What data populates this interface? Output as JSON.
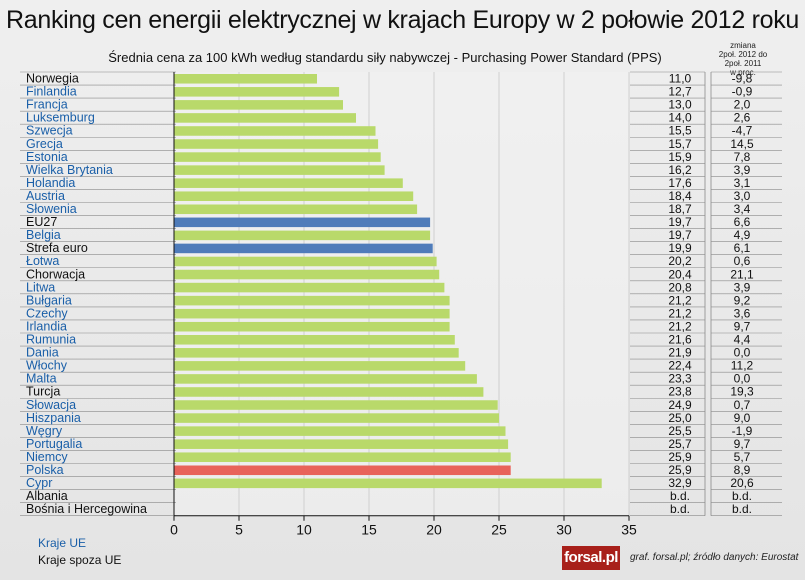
{
  "title": "Ranking cen energii elektrycznej w krajach Europy w 2 połowie 2012 roku",
  "subtitle": "Średnia cena za 100 kWh według standardu siły nabywczej - Purchasing Power Standard (PPS)",
  "change_header": [
    "zmiana",
    "2poł. 2012 do",
    "2poł. 2011",
    "w proc."
  ],
  "legend": {
    "eu": "Kraje UE",
    "non_eu": "Kraje spoza UE"
  },
  "logo": "forsal.pl",
  "source": "graf. forsal.pl;   źródło danych: Eurostat",
  "colors": {
    "bar": "#b9d96a",
    "aggregate": "#4f7cba",
    "poland": "#e8625a",
    "eu_text": "#1a5fa8",
    "non_eu_text": "#111111"
  },
  "chart_data": {
    "type": "bar",
    "orientation": "horizontal",
    "xlim": [
      0,
      35
    ],
    "xticks": [
      0,
      5,
      10,
      15,
      20,
      25,
      30,
      35
    ],
    "grid": true,
    "categories": [
      "Norwegia",
      "Finlandia",
      "Francja",
      "Luksemburg",
      "Szwecja",
      "Grecja",
      "Estonia",
      "Wielka Brytania",
      "Holandia",
      "Austria",
      "Słowenia",
      "EU27",
      "Belgia",
      "Strefa euro",
      "Łotwa",
      "Chorwacja",
      "Litwa",
      "Bułgaria",
      "Czechy",
      "Irlandia",
      "Rumunia",
      "Dania",
      "Włochy",
      "Malta",
      "Turcja",
      "Słowacja",
      "Hiszpania",
      "Węgry",
      "Portugalia",
      "Niemcy",
      "Polska",
      "Cypr",
      "Albania",
      "Bośnia i Hercegowina"
    ],
    "groups": [
      "non-eu",
      "eu",
      "eu",
      "eu",
      "eu",
      "eu",
      "eu",
      "eu",
      "eu",
      "eu",
      "eu",
      "aggregate",
      "eu",
      "aggregate",
      "eu",
      "non-eu",
      "eu",
      "eu",
      "eu",
      "eu",
      "eu",
      "eu",
      "eu",
      "eu",
      "non-eu",
      "eu",
      "eu",
      "eu",
      "eu",
      "eu",
      "highlight",
      "eu",
      "non-eu",
      "non-eu"
    ],
    "values": [
      11.0,
      12.7,
      13.0,
      14.0,
      15.5,
      15.7,
      15.9,
      16.2,
      17.6,
      18.4,
      18.7,
      19.7,
      19.7,
      19.9,
      20.2,
      20.4,
      20.8,
      21.2,
      21.2,
      21.2,
      21.6,
      21.9,
      22.4,
      23.3,
      23.8,
      24.9,
      25.0,
      25.5,
      25.7,
      25.9,
      25.9,
      32.9,
      null,
      null
    ],
    "value_labels": [
      "11,0",
      "12,7",
      "13,0",
      "14,0",
      "15,5",
      "15,7",
      "15,9",
      "16,2",
      "17,6",
      "18,4",
      "18,7",
      "19,7",
      "19,7",
      "19,9",
      "20,2",
      "20,4",
      "20,8",
      "21,2",
      "21,2",
      "21,2",
      "21,6",
      "21,9",
      "22,4",
      "23,3",
      "23,8",
      "24,9",
      "25,0",
      "25,5",
      "25,7",
      "25,9",
      "25,9",
      "32,9",
      "b.d.",
      "b.d."
    ],
    "change_labels": [
      "-9,8",
      "-0,9",
      "2,0",
      "2,6",
      "-4,7",
      "14,5",
      "7,8",
      "3,9",
      "3,1",
      "3,0",
      "3,4",
      "6,6",
      "4,9",
      "6,1",
      "0,6",
      "21,1",
      "3,9",
      "9,2",
      "3,6",
      "9,7",
      "4,4",
      "0,0",
      "11,2",
      "0,0",
      "19,3",
      "0,7",
      "9,0",
      "-1,9",
      "9,7",
      "5,7",
      "8,9",
      "20,6",
      "b.d.",
      "b.d."
    ]
  }
}
